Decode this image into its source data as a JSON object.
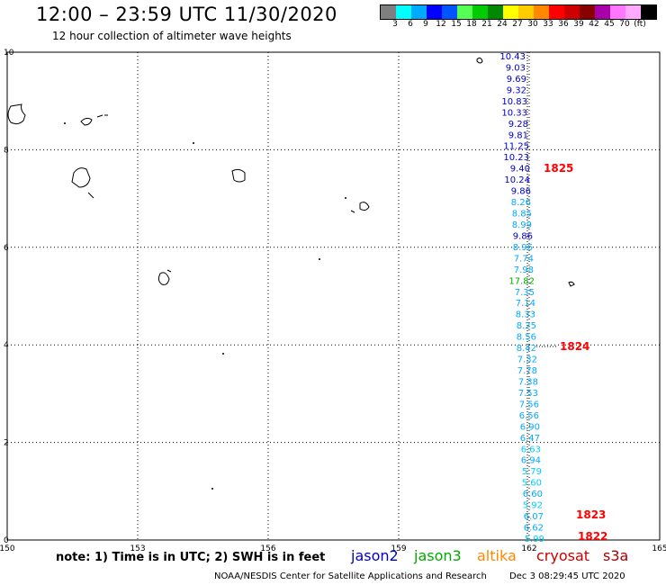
{
  "header": {
    "title": "12:00 – 23:59 UTC 11/30/2020",
    "subtitle": "12 hour collection of altimeter wave heights"
  },
  "colorbar": {
    "colors": [
      "#7f7f7f",
      "#00ffff",
      "#00aaff",
      "#0000ff",
      "#0055ff",
      "#55ff55",
      "#00cc00",
      "#008800",
      "#ffff00",
      "#ffcc00",
      "#ff8800",
      "#ff0000",
      "#cc0000",
      "#880000",
      "#aa00aa",
      "#ff77ff",
      "#ffaaff",
      "#000000"
    ],
    "labels": [
      "3",
      "6",
      "9",
      "12",
      "15",
      "18",
      "21",
      "24",
      "27",
      "30",
      "33",
      "36",
      "39",
      "42",
      "45",
      "70",
      "(ft)"
    ]
  },
  "map": {
    "x_ticks": [
      "150",
      "153",
      "156",
      "159",
      "162",
      "165"
    ],
    "y_ticks": [
      "10",
      "8",
      "6",
      "4",
      "2",
      "0"
    ],
    "x_range": [
      150,
      165
    ],
    "y_range": [
      0,
      10
    ]
  },
  "observations": [
    {
      "v": "10.43",
      "c": "#0000cc"
    },
    {
      "v": "9.03",
      "c": "#0000cc"
    },
    {
      "v": "9.69",
      "c": "#0000cc"
    },
    {
      "v": "9.32",
      "c": "#0000cc"
    },
    {
      "v": "10.83",
      "c": "#0000cc"
    },
    {
      "v": "10.33",
      "c": "#0000cc"
    },
    {
      "v": "9.28",
      "c": "#0000cc"
    },
    {
      "v": "9.81",
      "c": "#0000cc"
    },
    {
      "v": "11.25",
      "c": "#0000cc"
    },
    {
      "v": "10.23",
      "c": "#0000cc"
    },
    {
      "v": "9.40",
      "c": "#0000cc"
    },
    {
      "v": "10.24",
      "c": "#0000cc"
    },
    {
      "v": "9.86",
      "c": "#0000cc"
    },
    {
      "v": "8.26",
      "c": "#00aaff"
    },
    {
      "v": "8.85",
      "c": "#00aaff"
    },
    {
      "v": "8.99",
      "c": "#00aaff"
    },
    {
      "v": "9.86",
      "c": "#0000cc"
    },
    {
      "v": "8.96",
      "c": "#00aaff"
    },
    {
      "v": "7.74",
      "c": "#00aaff"
    },
    {
      "v": "7.98",
      "c": "#00aaff"
    },
    {
      "v": "17.82",
      "c": "#00aa00"
    },
    {
      "v": "7.35",
      "c": "#00aaff"
    },
    {
      "v": "7.14",
      "c": "#00aaff"
    },
    {
      "v": "8.33",
      "c": "#00aaff"
    },
    {
      "v": "8.25",
      "c": "#00aaff"
    },
    {
      "v": "8.56",
      "c": "#00aaff"
    },
    {
      "v": "8.42",
      "c": "#00aaff"
    },
    {
      "v": "7.32",
      "c": "#00aaff"
    },
    {
      "v": "7.78",
      "c": "#00aaff"
    },
    {
      "v": "7.38",
      "c": "#00aaff"
    },
    {
      "v": "7.53",
      "c": "#00aaff"
    },
    {
      "v": "7.56",
      "c": "#00aaff"
    },
    {
      "v": "6.56",
      "c": "#00aaff"
    },
    {
      "v": "6.90",
      "c": "#00aaff"
    },
    {
      "v": "6.47",
      "c": "#00aaff"
    },
    {
      "v": "6.63",
      "c": "#00ccff"
    },
    {
      "v": "6.94",
      "c": "#00aaff"
    },
    {
      "v": "5.79",
      "c": "#00ccff"
    },
    {
      "v": "5.60",
      "c": "#00ccff"
    },
    {
      "v": "6.60",
      "c": "#00aaff"
    },
    {
      "v": "5.92",
      "c": "#00ccff"
    },
    {
      "v": "6.07",
      "c": "#00aaff"
    },
    {
      "v": "6.62",
      "c": "#00aaff"
    },
    {
      "v": "5.99",
      "c": "#00ccff"
    }
  ],
  "time_labels": [
    "1825",
    "1824",
    "1823",
    "1822"
  ],
  "note": "note: 1) Time is in UTC; 2) SWH is in feet",
  "satellites": [
    {
      "name": "jason2",
      "color": "#0000cc"
    },
    {
      "name": "jason3",
      "color": "#00aa00"
    },
    {
      "name": "altika",
      "color": "#ff8800"
    },
    {
      "name": "cryosat",
      "color": "#cc0000"
    },
    {
      "name": "s3a",
      "color": "#aa0000"
    }
  ],
  "footer": {
    "credit": "NOAA/NESDIS Center for Satellite Applications and Research",
    "timestamp": "Dec  3 08:29:45 UTC 2020"
  }
}
